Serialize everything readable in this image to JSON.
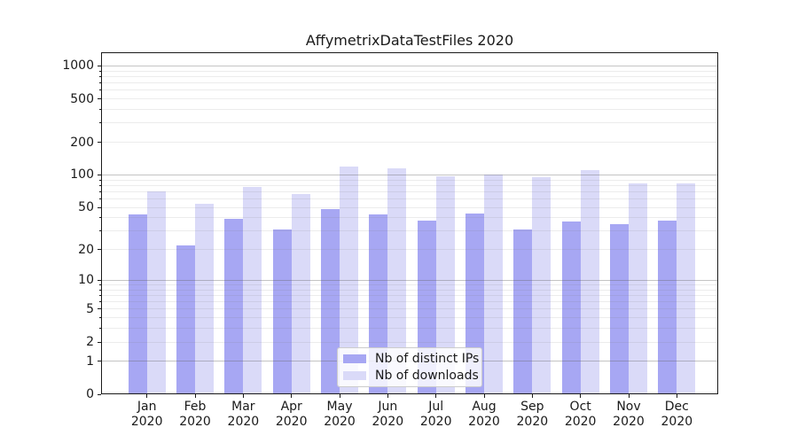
{
  "title": "AffymetrixDataTestFiles 2020",
  "chart_data": {
    "type": "bar",
    "title": "AffymetrixDataTestFiles 2020",
    "xlabel": "",
    "ylabel": "",
    "yscale": "log1p",
    "grid": true,
    "legend_position": "lower center",
    "categories": [
      "Jan",
      "Feb",
      "Mar",
      "Apr",
      "May",
      "Jun",
      "Jul",
      "Aug",
      "Sep",
      "Oct",
      "Nov",
      "Dec"
    ],
    "category_year": "2020",
    "series": [
      {
        "name": "Nb of distinct IPs",
        "color": "#a7a7f3",
        "values": [
          43,
          22,
          39,
          31,
          48,
          43,
          38,
          44,
          31,
          37,
          35,
          38
        ]
      },
      {
        "name": "Nb of downloads",
        "color": "#dadaf8",
        "values": [
          70,
          54,
          77,
          67,
          120,
          116,
          97,
          101,
          95,
          110,
          84,
          84
        ]
      }
    ],
    "yticks": [
      0,
      1,
      2,
      5,
      10,
      20,
      50,
      100,
      200,
      500,
      1000
    ],
    "ylim": [
      0,
      1300
    ]
  }
}
